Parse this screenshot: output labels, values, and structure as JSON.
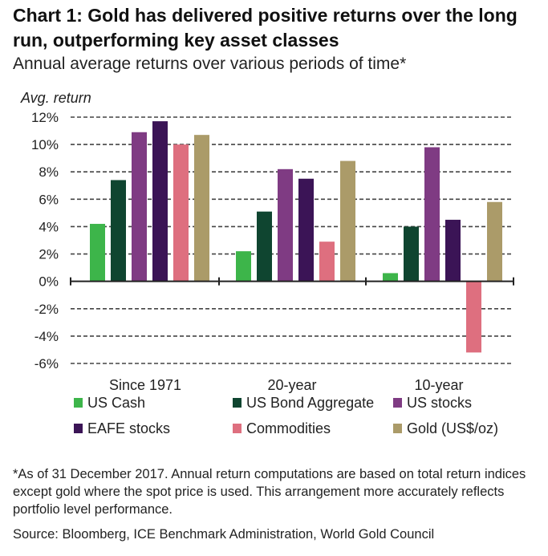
{
  "title": "Chart 1: Gold has delivered positive returns over the long run, outperforming key asset classes",
  "subtitle": "Annual average returns over various periods of time*",
  "footnote": "*As of 31 December 2017. Annual return computations are based on total return indices except gold where the spot price is used. This arrangement more accurately reflects portfolio level performance.",
  "source": "Source: Bloomberg, ICE Benchmark Administration, World Gold Council",
  "chart_data": {
    "type": "bar",
    "ylabel": "Avg.  return",
    "ylim": [
      -6,
      12
    ],
    "yticks": [
      12,
      10,
      8,
      6,
      4,
      2,
      0,
      -2,
      -4,
      -6
    ],
    "ytick_labels": [
      "12%",
      "10%",
      "8%",
      "6%",
      "4%",
      "2%",
      "0%",
      "-2%",
      "-4%",
      "-6%"
    ],
    "categories": [
      "Since 1971",
      "20-year",
      "10-year"
    ],
    "series": [
      {
        "name": "US Cash",
        "color": "#3db54a",
        "values": [
          4.2,
          2.2,
          0.6
        ]
      },
      {
        "name": "US Bond Aggregate",
        "color": "#0f4530",
        "values": [
          7.4,
          5.1,
          4.0
        ]
      },
      {
        "name": "US stocks",
        "color": "#7f3b83",
        "values": [
          10.9,
          8.2,
          9.8
        ]
      },
      {
        "name": "EAFE stocks",
        "color": "#3b1456",
        "values": [
          11.7,
          7.5,
          4.5
        ]
      },
      {
        "name": "Commodities",
        "color": "#de6f7f",
        "values": [
          10.0,
          2.9,
          -5.2
        ]
      },
      {
        "name": "Gold (US$/oz)",
        "color": "#ab9b69",
        "values": [
          10.7,
          8.8,
          5.8
        ]
      }
    ],
    "legend_position": "bottom",
    "grid": "dashed horizontal"
  }
}
